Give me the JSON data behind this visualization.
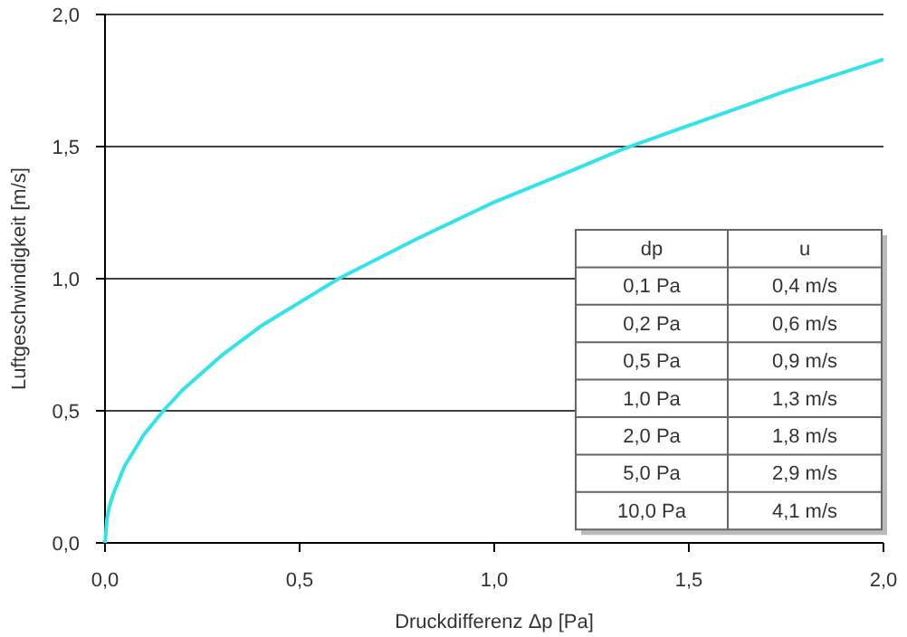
{
  "chart_data": {
    "type": "line",
    "xlabel": "Druckdifferenz Δp [Pa]",
    "ylabel": "Luftgeschwindigkeit [m/s]",
    "x": [
      0,
      0.005,
      0.01,
      0.02,
      0.05,
      0.1,
      0.15,
      0.2,
      0.3,
      0.4,
      0.5,
      0.6,
      0.8,
      1.0,
      1.2,
      1.33,
      1.5,
      1.75,
      2.0
    ],
    "series": [
      {
        "color": "#33e3ea",
        "values": [
          0,
          0.09,
          0.13,
          0.18,
          0.29,
          0.41,
          0.5,
          0.58,
          0.71,
          0.82,
          0.91,
          1.0,
          1.15,
          1.29,
          1.41,
          1.49,
          1.58,
          1.71,
          1.83
        ]
      }
    ],
    "xlim": [
      0,
      2.0
    ],
    "ylim": [
      0,
      2.0
    ],
    "xticks": [
      {
        "value": 0,
        "label": "0,0"
      },
      {
        "value": 0.5,
        "label": "0,5"
      },
      {
        "value": 1,
        "label": "1,0"
      },
      {
        "value": 1.5,
        "label": "1,5"
      },
      {
        "value": 2,
        "label": "2,0"
      }
    ],
    "yticks": [
      {
        "value": 0,
        "label": "0,0"
      },
      {
        "value": 0.5,
        "label": "0,5"
      },
      {
        "value": 1,
        "label": "1,0"
      },
      {
        "value": 1.5,
        "label": "1,5"
      },
      {
        "value": 2,
        "label": "2,0"
      }
    ],
    "grid": "y",
    "marker": "none",
    "line_style": "solid",
    "annotations": [
      "dp",
      "u",
      "0,1 Pa",
      "0,4 m/s",
      "0,2 Pa",
      "0,6 m/s",
      "0,5 Pa",
      "0,9 m/s",
      "1,0 Pa",
      "1,3 m/s",
      "2,0 Pa",
      "1,8 m/s",
      "5,0 Pa",
      "2,9 m/s",
      "10,0 Pa",
      "4,1 m/s"
    ]
  }
}
